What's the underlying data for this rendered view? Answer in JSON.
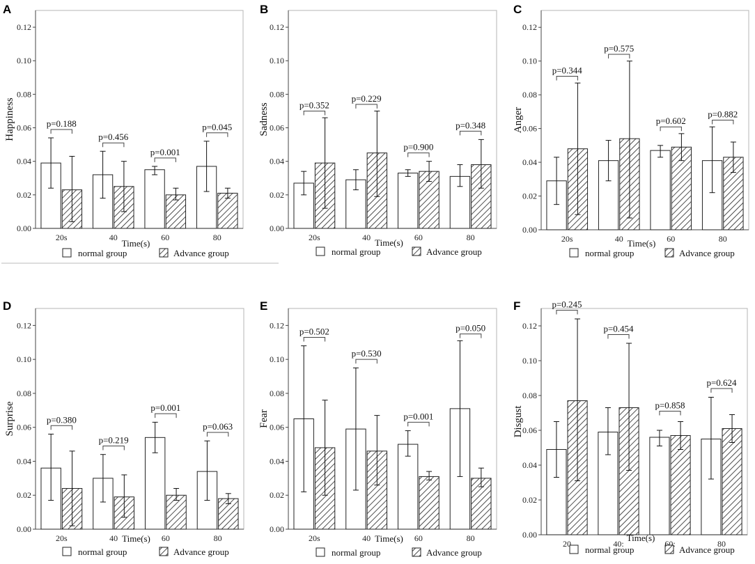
{
  "legend": {
    "normal": "normal group",
    "advance": "Advance group"
  },
  "chart_data": [
    {
      "type": "bar",
      "panel": "A",
      "ylabel": "Happiness",
      "xlabel": "Time(s)",
      "categories": [
        "20s",
        "40",
        "60",
        "80"
      ],
      "ylim": [
        0,
        0.13
      ],
      "yticks": [
        "0.00",
        "0.02",
        "0.04",
        "0.06",
        "0.08",
        "0.10",
        "0.12"
      ],
      "series": [
        {
          "name": "normal group",
          "values": [
            0.039,
            0.032,
            0.035,
            0.037
          ],
          "err_low": [
            0.024,
            0.018,
            0.032,
            0.022
          ],
          "err_high": [
            0.054,
            0.046,
            0.037,
            0.052
          ]
        },
        {
          "name": "Advance group",
          "values": [
            0.023,
            0.025,
            0.02,
            0.021
          ],
          "err_low": [
            0.004,
            0.01,
            0.017,
            0.018
          ],
          "err_high": [
            0.043,
            0.04,
            0.024,
            0.024
          ]
        }
      ],
      "pvalues": [
        "p=0.188",
        "p=0.456",
        "p=0.001",
        "p=0.045"
      ],
      "p_levels": [
        0.059,
        0.051,
        0.042,
        0.057
      ]
    },
    {
      "type": "bar",
      "panel": "B",
      "ylabel": "Sadness",
      "xlabel": "Time(s)",
      "categories": [
        "20s",
        "40",
        "60",
        "80"
      ],
      "ylim": [
        0,
        0.13
      ],
      "yticks": [
        "0.00",
        "0.02",
        "0.04",
        "0.06",
        "0.08",
        "0.10",
        "0.12"
      ],
      "series": [
        {
          "name": "normal group",
          "values": [
            0.027,
            0.029,
            0.033,
            0.031
          ],
          "err_low": [
            0.02,
            0.023,
            0.031,
            0.025
          ],
          "err_high": [
            0.034,
            0.035,
            0.035,
            0.038
          ]
        },
        {
          "name": "Advance group",
          "values": [
            0.039,
            0.045,
            0.034,
            0.038
          ],
          "err_low": [
            0.012,
            0.019,
            0.028,
            0.024
          ],
          "err_high": [
            0.066,
            0.07,
            0.04,
            0.053
          ]
        }
      ],
      "pvalues": [
        "p=0.352",
        "p=0.229",
        "p=0.900",
        "p=0.348"
      ],
      "p_levels": [
        0.07,
        0.074,
        0.045,
        0.058
      ]
    },
    {
      "type": "bar",
      "panel": "C",
      "ylabel": "Anger",
      "xlabel": "Time(s)",
      "categories": [
        "20s",
        "40",
        "60",
        "80"
      ],
      "ylim": [
        0,
        0.13
      ],
      "yticks": [
        "0.00",
        "0.02",
        "0.04",
        "0.06",
        "0.08",
        "0.10",
        "0.12"
      ],
      "series": [
        {
          "name": "normal group",
          "values": [
            0.029,
            0.041,
            0.047,
            0.041
          ],
          "err_low": [
            0.015,
            0.029,
            0.043,
            0.022
          ],
          "err_high": [
            0.043,
            0.053,
            0.05,
            0.061
          ]
        },
        {
          "name": "Advance group",
          "values": [
            0.048,
            0.054,
            0.049,
            0.043
          ],
          "err_low": [
            0.009,
            0.007,
            0.041,
            0.034
          ],
          "err_high": [
            0.087,
            0.1,
            0.057,
            0.052
          ]
        }
      ],
      "pvalues": [
        "p=0.344",
        "p=0.575",
        "p=0.602",
        "p=0.882"
      ],
      "p_levels": [
        0.091,
        0.104,
        0.061,
        0.065
      ]
    },
    {
      "type": "bar",
      "panel": "D",
      "ylabel": "Surprise",
      "xlabel": "Time(s)",
      "categories": [
        "20s",
        "40",
        "60",
        "80"
      ],
      "ylim": [
        0,
        0.13
      ],
      "yticks": [
        "0.00",
        "0.02",
        "0.04",
        "0.06",
        "0.08",
        "0.10",
        "0.12"
      ],
      "series": [
        {
          "name": "normal group",
          "values": [
            0.036,
            0.03,
            0.054,
            0.034
          ],
          "err_low": [
            0.017,
            0.016,
            0.045,
            0.017
          ],
          "err_high": [
            0.056,
            0.044,
            0.063,
            0.052
          ]
        },
        {
          "name": "Advance group",
          "values": [
            0.024,
            0.019,
            0.02,
            0.018
          ],
          "err_low": [
            0.002,
            0.007,
            0.017,
            0.015
          ],
          "err_high": [
            0.046,
            0.032,
            0.024,
            0.021
          ]
        }
      ],
      "pvalues": [
        "p=0.380",
        "p=0.219",
        "p=0.001",
        "p=0.063"
      ],
      "p_levels": [
        0.061,
        0.049,
        0.068,
        0.057
      ]
    },
    {
      "type": "bar",
      "panel": "E",
      "ylabel": "Fear",
      "xlabel": "Time(s)",
      "categories": [
        "20s",
        "40",
        "60",
        "80"
      ],
      "ylim": [
        0,
        0.13
      ],
      "yticks": [
        "0.00",
        "0.02",
        "0.04",
        "0.06",
        "0.08",
        "0.10",
        "0.12"
      ],
      "series": [
        {
          "name": "normal group",
          "values": [
            0.065,
            0.059,
            0.05,
            0.071
          ],
          "err_low": [
            0.022,
            0.023,
            0.043,
            0.031
          ],
          "err_high": [
            0.108,
            0.095,
            0.058,
            0.111
          ]
        },
        {
          "name": "Advance group",
          "values": [
            0.048,
            0.046,
            0.031,
            0.03
          ],
          "err_low": [
            0.02,
            0.026,
            0.029,
            0.025
          ],
          "err_high": [
            0.076,
            0.067,
            0.034,
            0.036
          ]
        }
      ],
      "pvalues": [
        "p=0.502",
        "p=0.530",
        "p=0.001",
        "p=0.050"
      ],
      "p_levels": [
        0.113,
        0.1,
        0.063,
        0.115
      ]
    },
    {
      "type": "bar",
      "panel": "F",
      "ylabel": "Disgust",
      "xlabel": "Time(s)",
      "categories": [
        "20",
        "40:",
        "60:",
        "80"
      ],
      "ylim": [
        0,
        0.13
      ],
      "yticks": [
        "0.00",
        "0.02",
        "0.04",
        "0.06",
        "0.08",
        "0.10",
        "0.12"
      ],
      "series": [
        {
          "name": "normal group",
          "values": [
            0.049,
            0.059,
            0.056,
            0.055
          ],
          "err_low": [
            0.033,
            0.046,
            0.051,
            0.032
          ],
          "err_high": [
            0.065,
            0.073,
            0.06,
            0.079
          ]
        },
        {
          "name": "Advance group",
          "values": [
            0.077,
            0.073,
            0.057,
            0.061
          ],
          "err_low": [
            0.031,
            0.037,
            0.049,
            0.053
          ],
          "err_high": [
            0.124,
            0.11,
            0.065,
            0.069
          ]
        }
      ],
      "pvalues": [
        "p=0.245",
        "p=0.454",
        "p=0.858",
        "p=0.624"
      ],
      "p_levels": [
        0.129,
        0.115,
        0.071,
        0.084
      ]
    }
  ]
}
